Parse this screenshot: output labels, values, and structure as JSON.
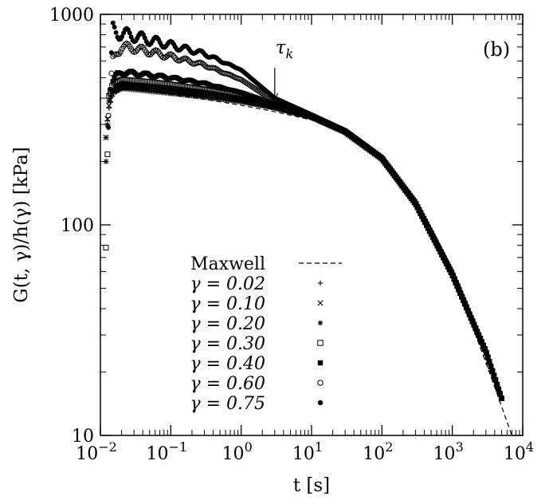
{
  "chart_data": {
    "type": "scatter",
    "panel_label": "(b)",
    "xlabel": "t [s]",
    "ylabel": "G(t, γ)/h(γ) [kPa]",
    "xscale": "log",
    "yscale": "log",
    "xlim": [
      0.01,
      10000
    ],
    "ylim": [
      10,
      1000
    ],
    "grid": false,
    "legend_position": "bottom-left",
    "x_ticks": [
      {
        "value": 0.01,
        "base": "10",
        "exp": "−2"
      },
      {
        "value": 0.1,
        "base": "10",
        "exp": "−1"
      },
      {
        "value": 1,
        "base": "10",
        "exp": "0"
      },
      {
        "value": 10,
        "base": "10",
        "exp": "1"
      },
      {
        "value": 100,
        "base": "10",
        "exp": "2"
      },
      {
        "value": 1000,
        "base": "10",
        "exp": "3"
      },
      {
        "value": 10000,
        "base": "10",
        "exp": "4"
      }
    ],
    "y_ticks": [
      {
        "value": 10,
        "label": "10"
      },
      {
        "value": 100,
        "label": "100"
      },
      {
        "value": 1000,
        "label": "1000"
      }
    ],
    "annotation": {
      "text": "τk",
      "x": 3,
      "y": 380
    },
    "maxwell": {
      "name": "Maxwell",
      "style": "dashed",
      "x": [
        0.02,
        0.05,
        0.1,
        0.3,
        1,
        3,
        10,
        30,
        100,
        300,
        1000,
        2000,
        4000,
        7000
      ],
      "y": [
        440,
        430,
        415,
        395,
        370,
        345,
        315,
        270,
        200,
        120,
        55,
        32,
        17,
        10
      ]
    },
    "series": [
      {
        "name": "γ = 0.02",
        "marker": "plus",
        "x": [
          0.012,
          0.013,
          0.015,
          0.02,
          0.03,
          0.05,
          0.1,
          0.3,
          1,
          3,
          10,
          30,
          100,
          300,
          1000,
          2000,
          3000,
          5000
        ],
        "y": [
          260,
          350,
          420,
          445,
          440,
          432,
          422,
          405,
          385,
          360,
          325,
          275,
          205,
          125,
          58,
          34,
          25,
          15
        ]
      },
      {
        "name": "γ = 0.10",
        "marker": "cross",
        "x": [
          0.012,
          0.013,
          0.015,
          0.02,
          0.03,
          0.05,
          0.1,
          0.3,
          1,
          3,
          10,
          30,
          100,
          300,
          1000,
          2000,
          3000,
          5000
        ],
        "y": [
          260,
          360,
          430,
          450,
          448,
          440,
          430,
          412,
          390,
          362,
          326,
          276,
          206,
          126,
          58,
          34,
          25,
          15
        ]
      },
      {
        "name": "γ = 0.20",
        "marker": "star",
        "x": [
          0.012,
          0.013,
          0.015,
          0.02,
          0.03,
          0.05,
          0.1,
          0.3,
          1,
          3,
          10,
          30,
          100,
          300,
          1000,
          2000,
          3000,
          5000
        ],
        "y": [
          200,
          380,
          440,
          470,
          462,
          455,
          445,
          425,
          398,
          365,
          327,
          277,
          207,
          126,
          58,
          34,
          25,
          15
        ]
      },
      {
        "name": "γ = 0.30",
        "marker": "square-open",
        "x": [
          0.012,
          0.013,
          0.015,
          0.02,
          0.03,
          0.05,
          0.1,
          0.3,
          1,
          3,
          10,
          30,
          100,
          300,
          1000,
          2000,
          3000,
          5000
        ],
        "y": [
          78,
          400,
          470,
          490,
          485,
          478,
          465,
          440,
          408,
          368,
          328,
          278,
          207,
          127,
          58,
          34,
          25,
          15
        ]
      },
      {
        "name": "γ = 0.40",
        "marker": "square-filled",
        "x": [
          0.015,
          0.017,
          0.02,
          0.03,
          0.05,
          0.1,
          0.3,
          1,
          3,
          10,
          30,
          100,
          300,
          1000,
          2000,
          3000,
          5000
        ],
        "y": [
          480,
          515,
          530,
          525,
          515,
          500,
          470,
          425,
          375,
          330,
          279,
          208,
          127,
          59,
          34,
          25,
          15
        ]
      },
      {
        "name": "γ = 0.60",
        "marker": "circle-open",
        "x": [
          0.013,
          0.015,
          0.017,
          0.02,
          0.03,
          0.05,
          0.1,
          0.3,
          1,
          3,
          10,
          30,
          100,
          300,
          1000,
          2000,
          3000,
          5000
        ],
        "y": [
          330,
          600,
          660,
          700,
          690,
          665,
          630,
          575,
          490,
          385,
          332,
          280,
          208,
          127,
          59,
          34,
          25,
          15
        ]
      },
      {
        "name": "γ = 0.75",
        "marker": "circle-filled",
        "x": [
          0.013,
          0.015,
          0.017,
          0.02,
          0.03,
          0.05,
          0.1,
          0.3,
          1,
          3,
          10,
          30,
          100,
          300,
          1000,
          2000,
          3000,
          5000
        ],
        "y": [
          290,
          850,
          820,
          810,
          790,
          755,
          715,
          650,
          545,
          400,
          334,
          281,
          209,
          128,
          59,
          34,
          25,
          15
        ]
      }
    ]
  }
}
